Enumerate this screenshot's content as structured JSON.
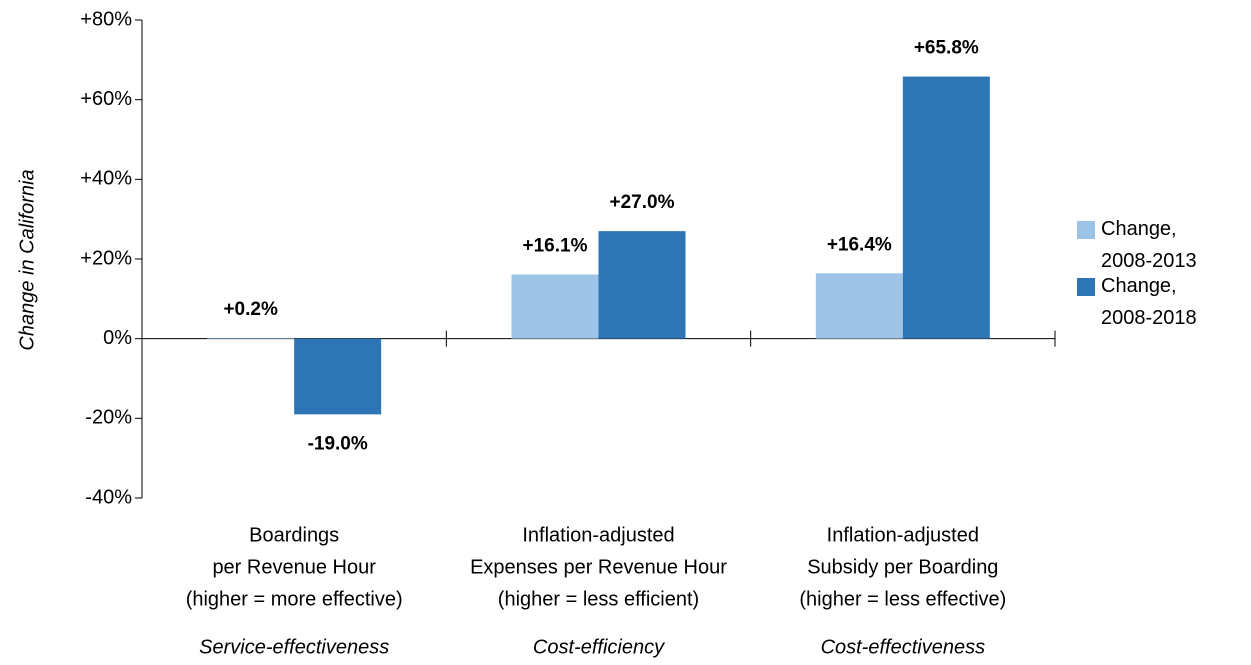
{
  "chart_data": {
    "type": "bar",
    "y_label": "Change in California",
    "categories": [
      [
        "Boardings",
        "per Revenue Hour",
        "(higher = more effective)"
      ],
      [
        "Inflation-adjusted",
        "Expenses per Revenue Hour",
        "(higher = less efficient)"
      ],
      [
        "Inflation-adjusted",
        "Subsidy per Boarding",
        "(higher = less effective)"
      ]
    ],
    "category_groups": [
      "Service-effectiveness",
      "Cost-efficiency",
      "Cost-effectiveness"
    ],
    "series": [
      {
        "name": "Change, 2008-2013",
        "color": "#9dc3e6",
        "values": [
          0.2,
          16.1,
          16.4
        ],
        "value_labels": [
          "+0.2%",
          "+16.1%",
          "+16.4%"
        ]
      },
      {
        "name": "Change, 2008-2018",
        "color": "#2e75b6",
        "values": [
          -19.0,
          27.0,
          65.8
        ],
        "value_labels": [
          "-19.0%",
          "+27.0%",
          "+65.8%"
        ]
      }
    ],
    "ylim": [
      -40,
      80
    ],
    "yticks": [
      {
        "value": -40,
        "label": "-40%"
      },
      {
        "value": -20,
        "label": "-20%"
      },
      {
        "value": 0,
        "label": "0%"
      },
      {
        "value": 20,
        "label": "+20%"
      },
      {
        "value": 40,
        "label": "+40%"
      },
      {
        "value": 60,
        "label": "+60%"
      },
      {
        "value": 80,
        "label": "+80%"
      }
    ],
    "legend": "right"
  }
}
